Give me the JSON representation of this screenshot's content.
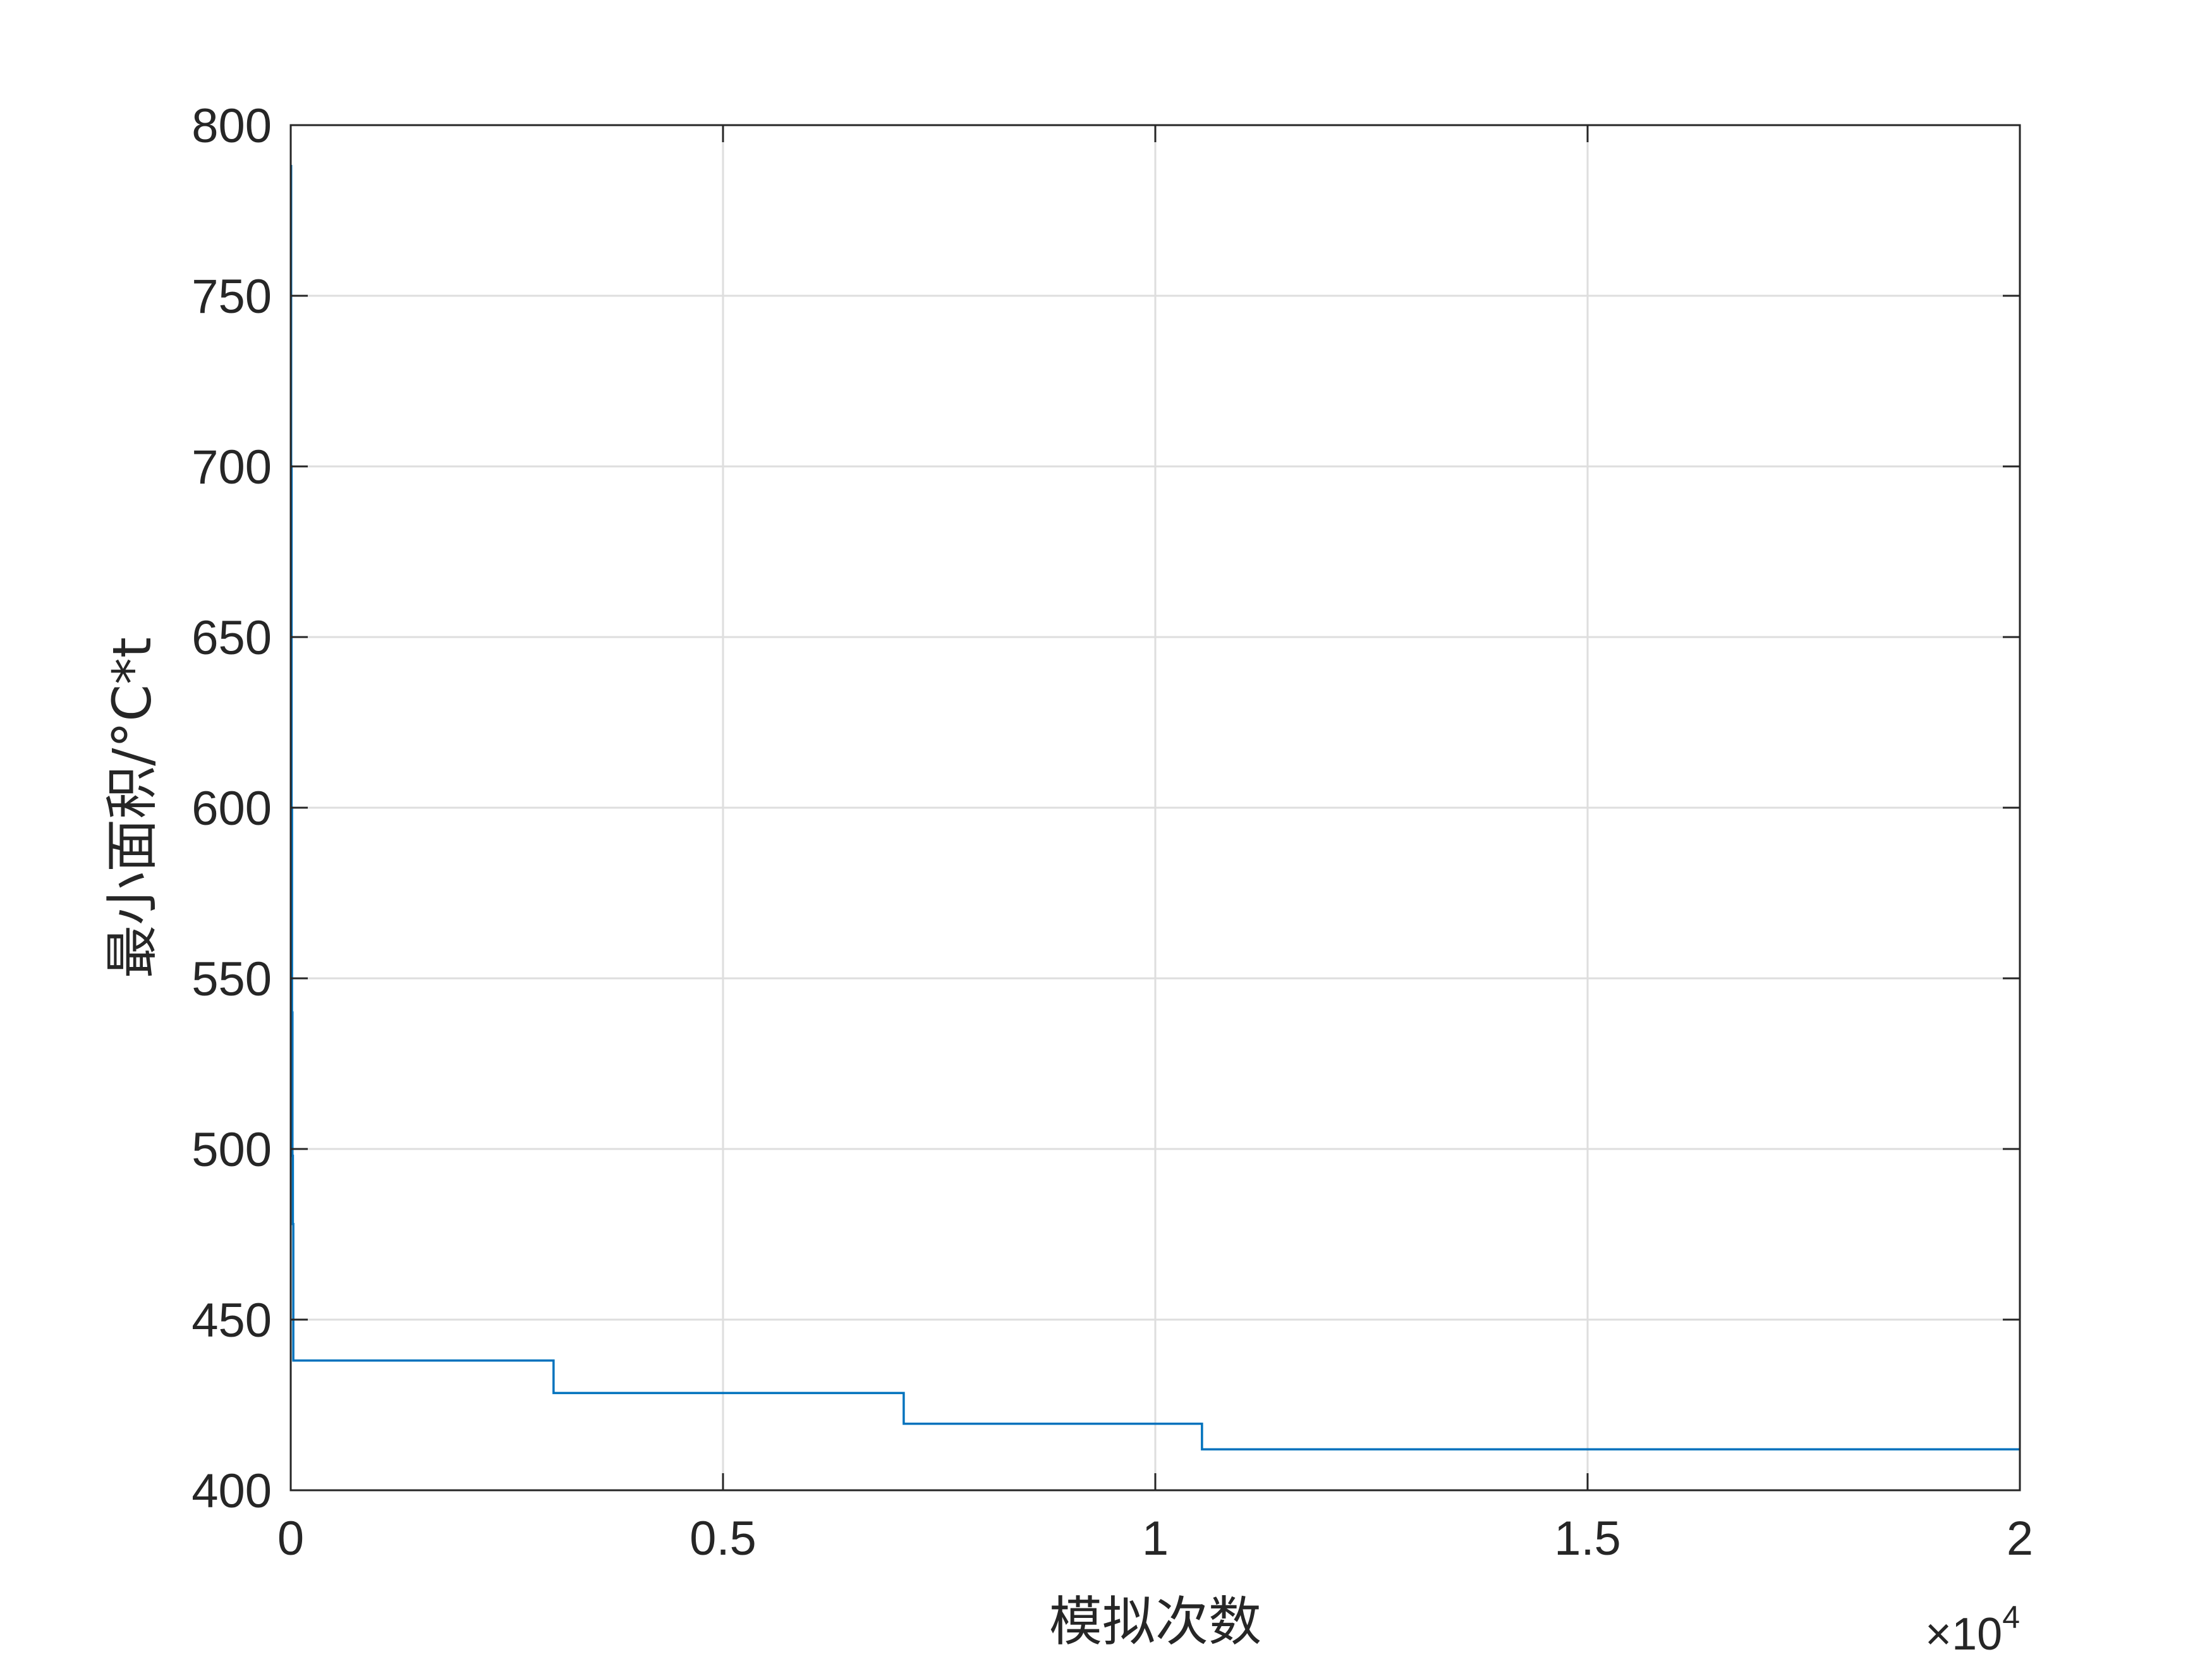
{
  "chart_data": {
    "type": "line",
    "title": "",
    "xlabel": "模拟次数",
    "ylabel": "最小面积/°C*t",
    "x_exponent": {
      "times": "×10",
      "power": "4"
    },
    "xlim": [
      0,
      2
    ],
    "ylim": [
      400,
      800
    ],
    "x_ticks": [
      0,
      0.5,
      1,
      1.5,
      2
    ],
    "x_tick_labels": [
      "0",
      "0.5",
      "1",
      "1.5",
      "2"
    ],
    "y_ticks": [
      400,
      450,
      500,
      550,
      600,
      650,
      700,
      750,
      800
    ],
    "y_tick_labels": [
      "400",
      "450",
      "500",
      "550",
      "600",
      "650",
      "700",
      "750",
      "800"
    ],
    "grid": true,
    "line_color": "#0072BD",
    "series": [
      {
        "step": true,
        "x": [
          0,
          0.0005,
          0.001,
          0.0015,
          0.002,
          0.0025,
          0.003,
          0.304,
          0.709,
          1.054,
          2.0
        ],
        "y": [
          788,
          700,
          600,
          540,
          498,
          478,
          438,
          428.5,
          419.5,
          412,
          412
        ]
      }
    ]
  }
}
